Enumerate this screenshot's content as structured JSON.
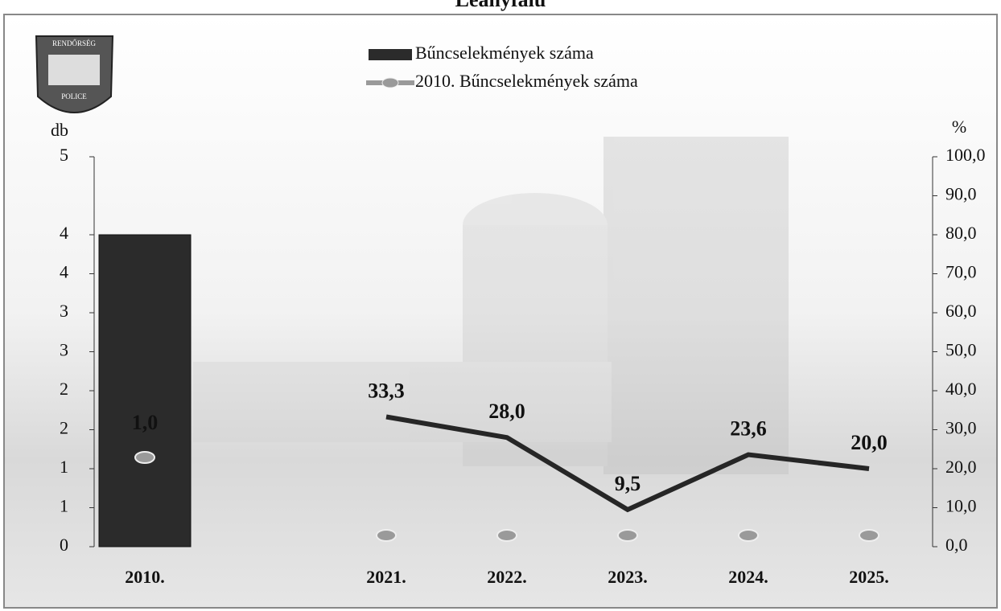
{
  "chart_data": {
    "type": "bar",
    "title": "Leányfalu",
    "logo": {
      "top": "RENDŐRSÉG",
      "bottom": "POLICE"
    },
    "y_label": "db",
    "y2_label": "%",
    "categories": [
      "2010.",
      null,
      "2021.",
      "2022.",
      "2023.",
      "2024.",
      "2025."
    ],
    "series": [
      {
        "name": "Bűncselekmények száma",
        "type": "bar",
        "color": "#2b2b2b",
        "values": [
          4,
          null,
          null,
          null,
          null,
          null,
          null
        ]
      },
      {
        "name": "2010. Bűncselekmények száma",
        "type": "marker",
        "color": "#9a9a9a",
        "values": [
          1,
          null,
          0,
          0,
          0,
          0,
          0
        ],
        "value_labels": [
          "1,0",
          null,
          null,
          null,
          null,
          null,
          null
        ]
      },
      {
        "type": "line",
        "axis": "y2",
        "color": "#262626",
        "values": [
          null,
          null,
          33.3,
          28.0,
          9.5,
          23.6,
          20.0
        ],
        "value_labels": [
          null,
          null,
          "33,3",
          "28,0",
          "9,5",
          "23,6",
          "20,0"
        ]
      }
    ],
    "ylim": [
      0,
      5
    ],
    "yticks": [
      0,
      {
        "value": 0.5,
        "label": "1"
      },
      1,
      {
        "value": 1.5,
        "label": "2"
      },
      2,
      {
        "value": 2.5,
        "label": "3"
      },
      3,
      {
        "value": 3.5,
        "label": "4"
      },
      4,
      5
    ],
    "y2lim": [
      0,
      100
    ],
    "y2ticks": [
      {
        "value": 0,
        "label": "0,0"
      },
      {
        "value": 10,
        "label": "10,0"
      },
      {
        "value": 20,
        "label": "20,0"
      },
      {
        "value": 30,
        "label": "30,0"
      },
      {
        "value": 40,
        "label": "40,0"
      },
      {
        "value": 50,
        "label": "50,0"
      },
      {
        "value": 60,
        "label": "60,0"
      },
      {
        "value": 70,
        "label": "70,0"
      },
      {
        "value": 80,
        "label": "80,0"
      },
      {
        "value": 90,
        "label": "90,0"
      },
      {
        "value": 100,
        "label": "100,0"
      }
    ]
  }
}
